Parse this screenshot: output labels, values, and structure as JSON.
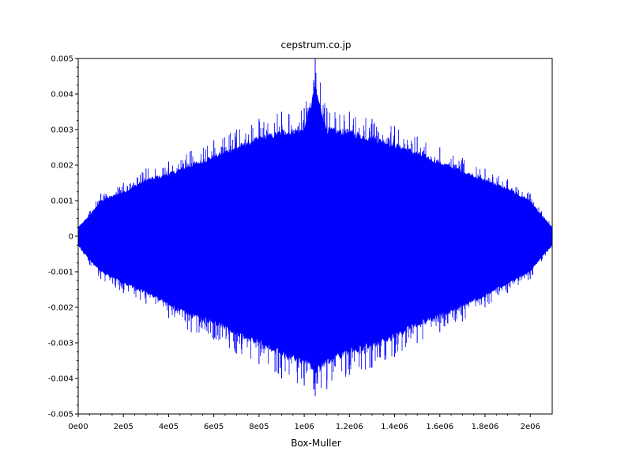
{
  "chart_data": {
    "type": "line",
    "title": "cepstrum.co.jp",
    "xlabel": "Box-Muller",
    "ylabel": "",
    "xlim": [
      0,
      2097152
    ],
    "ylim": [
      -0.005,
      0.005
    ],
    "x_ticks": [
      {
        "value": 0,
        "label": "0e00"
      },
      {
        "value": 200000,
        "label": "2e05"
      },
      {
        "value": 400000,
        "label": "4e05"
      },
      {
        "value": 600000,
        "label": "6e05"
      },
      {
        "value": 800000,
        "label": "8e05"
      },
      {
        "value": 1000000,
        "label": "1e06"
      },
      {
        "value": 1200000,
        "label": "1.2e06"
      },
      {
        "value": 1400000,
        "label": "1.4e06"
      },
      {
        "value": 1600000,
        "label": "1.6e06"
      },
      {
        "value": 1800000,
        "label": "1.8e06"
      },
      {
        "value": 2000000,
        "label": "2e06"
      }
    ],
    "y_ticks": [
      {
        "value": 0.005,
        "label": "0.005"
      },
      {
        "value": 0.004,
        "label": "0.004"
      },
      {
        "value": 0.003,
        "label": "0.003"
      },
      {
        "value": 0.002,
        "label": "0.002"
      },
      {
        "value": 0.001,
        "label": "0.001"
      },
      {
        "value": 0,
        "label": "0"
      },
      {
        "value": -0.001,
        "label": "-0.001"
      },
      {
        "value": -0.002,
        "label": "-0.002"
      },
      {
        "value": -0.003,
        "label": "-0.003"
      },
      {
        "value": -0.004,
        "label": "-0.004"
      },
      {
        "value": -0.005,
        "label": "-0.005"
      }
    ],
    "grid": false,
    "legend": "none",
    "series": [
      {
        "color": "#0000ff",
        "envelope_x": [
          0,
          50000,
          100000,
          200000,
          300000,
          400000,
          500000,
          600000,
          700000,
          800000,
          900000,
          1000000,
          1048576,
          1100000,
          1200000,
          1300000,
          1400000,
          1500000,
          1600000,
          1700000,
          1800000,
          1900000,
          2000000,
          2050000,
          2097152
        ],
        "envelope_upper": [
          0.0003,
          0.0007,
          0.0012,
          0.0015,
          0.0019,
          0.0021,
          0.0024,
          0.0027,
          0.003,
          0.0033,
          0.0035,
          0.0036,
          0.005,
          0.0036,
          0.0035,
          0.0033,
          0.0031,
          0.0028,
          0.0025,
          0.0022,
          0.0019,
          0.0016,
          0.0012,
          0.0007,
          0.0003
        ],
        "envelope_lower": [
          -0.0003,
          -0.0008,
          -0.0012,
          -0.0016,
          -0.0019,
          -0.0023,
          -0.0027,
          -0.0029,
          -0.0033,
          -0.0036,
          -0.004,
          -0.0042,
          -0.0045,
          -0.0043,
          -0.0039,
          -0.0037,
          -0.0034,
          -0.003,
          -0.0027,
          -0.0024,
          -0.002,
          -0.0016,
          -0.0012,
          -0.0007,
          -0.0003
        ]
      }
    ]
  }
}
